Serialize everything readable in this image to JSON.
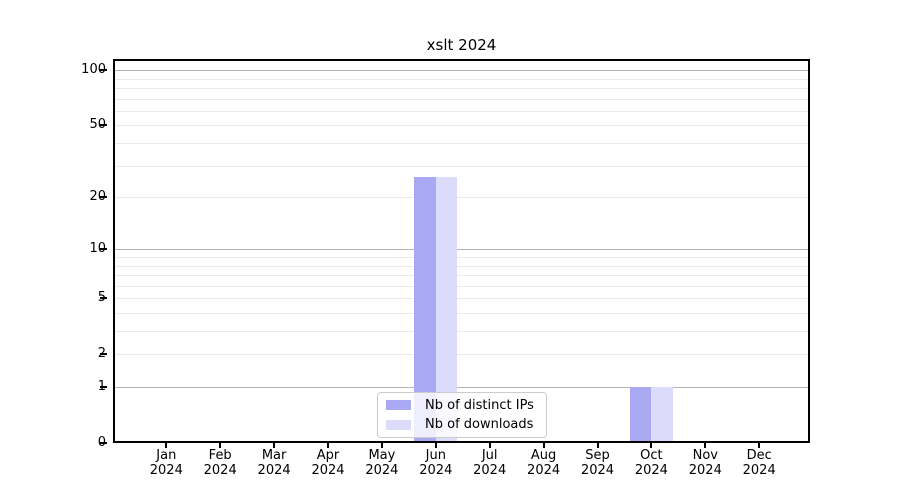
{
  "title": "xslt 2024",
  "chart_data": {
    "type": "bar",
    "title": "xslt 2024",
    "categories": [
      "Jan",
      "Feb",
      "Mar",
      "Apr",
      "May",
      "Jun",
      "Jul",
      "Aug",
      "Sep",
      "Oct",
      "Nov",
      "Dec"
    ],
    "category_year": "2024",
    "series": [
      {
        "name": "Nb of distinct IPs",
        "color": "#a9a9f3",
        "values": [
          0,
          0,
          0,
          0,
          0,
          26,
          0,
          0,
          0,
          1,
          0,
          0
        ]
      },
      {
        "name": "Nb of downloads",
        "color": "#dcdcfa",
        "values": [
          0,
          0,
          0,
          0,
          0,
          26,
          0,
          0,
          0,
          1,
          0,
          0
        ]
      }
    ],
    "xlabel": "",
    "ylabel": "",
    "yscale": "log1p",
    "ylim": [
      0,
      115
    ],
    "y_labeled_ticks": [
      0,
      1,
      2,
      5,
      10,
      20,
      50,
      100
    ],
    "y_major_gridlines": [
      1,
      10,
      100
    ],
    "y_minor_gridlines": [
      2,
      5,
      20,
      50,
      3,
      4,
      6,
      7,
      8,
      9,
      30,
      40,
      60,
      70,
      80,
      90
    ],
    "grid": true,
    "legend_position": "lower center",
    "colors": {
      "background": "#ffffff",
      "major_grid": "#b3b3b3",
      "minor_grid": "#eaeaea",
      "spine": "#000000",
      "text": "#000000",
      "legend_border": "#cccccc"
    }
  }
}
